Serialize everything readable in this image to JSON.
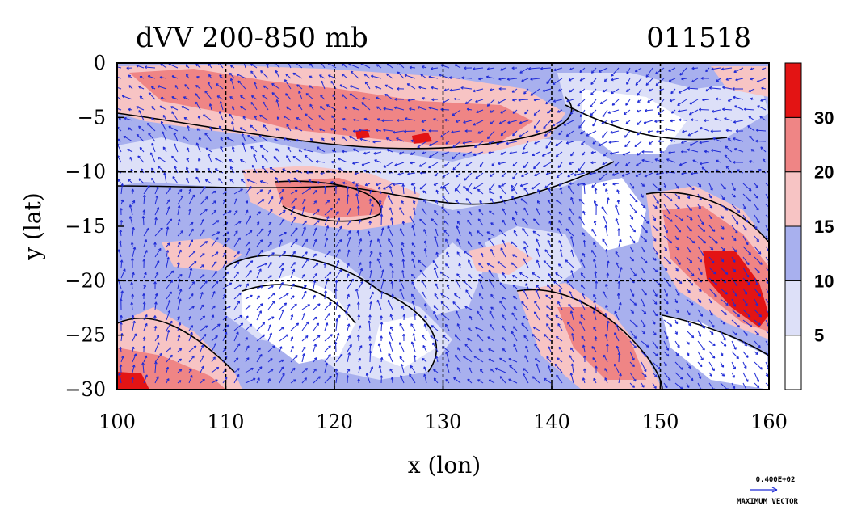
{
  "chart_data": {
    "type": "heatmap",
    "title": "dVV 200-850 mb",
    "date_label": "011518",
    "xlabel": "x (lon)",
    "ylabel": "y (lat)",
    "xlim": [
      100,
      160
    ],
    "ylim": [
      -30,
      0
    ],
    "x_ticks": [
      100,
      110,
      120,
      130,
      140,
      150,
      160
    ],
    "y_ticks": [
      0,
      -5,
      -10,
      -15,
      -20,
      -25,
      -30
    ],
    "grid_lon": [
      110,
      120,
      130,
      140,
      150
    ],
    "grid_lat": [
      -10,
      -20
    ],
    "colorbar": {
      "levels": [
        5,
        10,
        15,
        20,
        30
      ],
      "colors": [
        "#ffffff",
        "#dde0f8",
        "#a8b0ee",
        "#f7c4c4",
        "#ef8585",
        "#e31414"
      ],
      "labels": [
        "5",
        "10",
        "15",
        "20",
        "30"
      ]
    },
    "vector_key": {
      "value_label": "0.400E+02",
      "caption": "MAXIMUM VECTOR"
    }
  }
}
